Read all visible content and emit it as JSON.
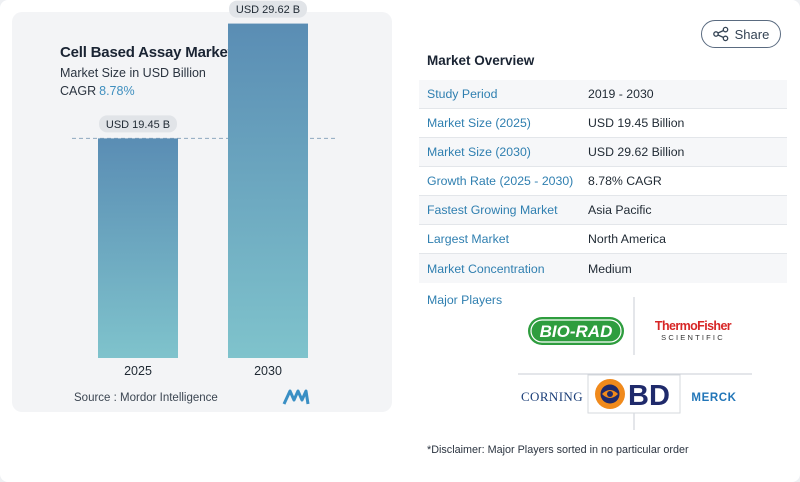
{
  "chart": {
    "title": "Cell Based Assay Market",
    "subtitle": "Market Size in USD Billion",
    "cagr_label": "CAGR",
    "cagr_value": "8.78%",
    "source": "Source :  Mordor Intelligence"
  },
  "chart_data": {
    "type": "bar",
    "title": "Cell Based Assay Market",
    "subtitle": "Market Size in USD Billion",
    "categories": [
      "2025",
      "2030"
    ],
    "values": [
      19.45,
      29.62
    ],
    "data_labels": [
      "USD 19.45 B",
      "USD 29.62 B"
    ],
    "ylim": [
      0,
      31
    ],
    "grid": false,
    "reference_line": "dashed line at 2025 value",
    "colors": {
      "bar_top": "#5a8db4",
      "bar_bottom": "#7fc3cc"
    }
  },
  "share": {
    "label": "Share"
  },
  "overview": {
    "title": "Market Overview",
    "rows": [
      {
        "label": "Study Period",
        "value": "2019 - 2030"
      },
      {
        "label": "Market Size (2025)",
        "value": "USD 19.45 Billion"
      },
      {
        "label": "Market Size (2030)",
        "value": "USD 29.62 Billion"
      },
      {
        "label": "Growth Rate (2025 - 2030)",
        "value": "8.78% CAGR"
      },
      {
        "label": "Fastest Growing Market",
        "value": "Asia Pacific"
      },
      {
        "label": "Largest Market",
        "value": "North America"
      },
      {
        "label": "Market Concentration",
        "value": "Medium"
      }
    ]
  },
  "players": {
    "title": "Major Players",
    "names": [
      "BIO-RAD",
      "Thermo Fisher SCIENTIFIC",
      "CORNING",
      "BD",
      "MERCK"
    ],
    "disclaimer": "*Disclaimer: Major Players sorted in no particular order"
  },
  "colors": {
    "accent": "#2f7fb0",
    "biorad": "#2e9d3e",
    "thermo": "#d72626",
    "bd_orange": "#f08a1c",
    "bd_navy": "#1f2a6b",
    "merck": "#2276b8"
  }
}
